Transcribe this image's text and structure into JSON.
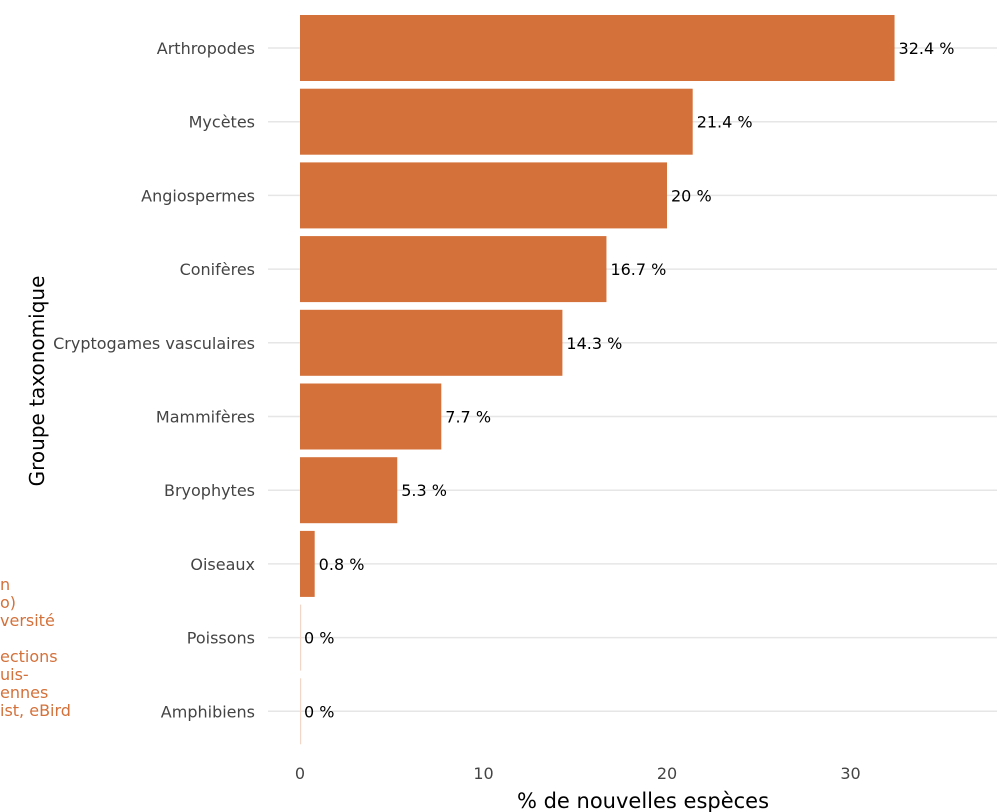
{
  "chart_data": {
    "type": "bar",
    "orientation": "horizontal",
    "categories": [
      "Arthropodes",
      "Mycètes",
      "Angiospermes",
      "Conifères",
      "Cryptogames vasculaires",
      "Mammifères",
      "Bryophytes",
      "Oiseaux",
      "Poissons",
      "Amphibiens"
    ],
    "values": [
      32.4,
      21.4,
      20,
      16.7,
      14.3,
      7.7,
      5.3,
      0.8,
      0,
      0
    ],
    "value_labels": [
      "32.4 %",
      "21.4 %",
      "20 %",
      "16.7 %",
      "14.3 %",
      "7.7 %",
      "5.3 %",
      "0.8 %",
      "0 %",
      "0 %"
    ],
    "xlabel": "% de nouvelles espèces",
    "ylabel": "Groupe taxonomique",
    "x_ticks": [
      0,
      10,
      20,
      30
    ],
    "xlim": [
      0,
      38
    ],
    "bar_color": "#d4713a",
    "grid": "horizontal major lines",
    "caption_fragment": [
      "n",
      "o)",
      "versité",
      "",
      "ections",
      "uis-",
      "ennes",
      "ist, eBird"
    ]
  }
}
